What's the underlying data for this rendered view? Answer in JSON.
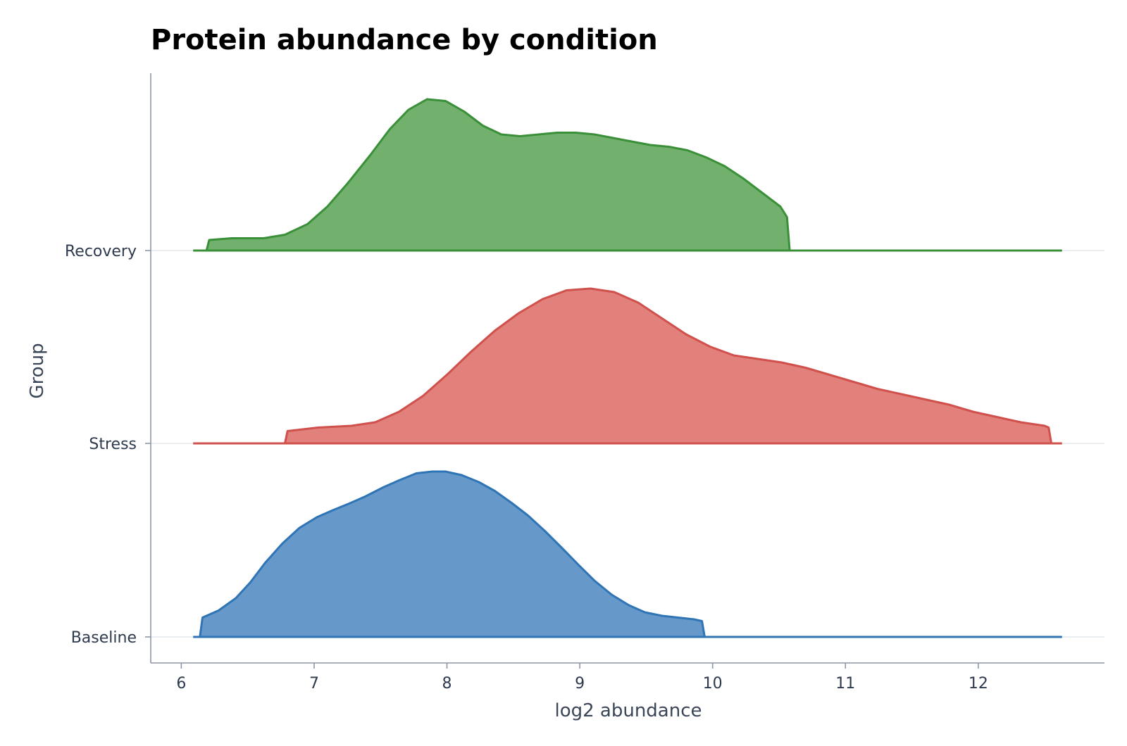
{
  "chart_data": {
    "type": "area",
    "subtype": "ridgeline",
    "title": "Protein abundance by condition",
    "xlabel": "log2 abundance",
    "ylabel": "Group",
    "xlim": [
      5.77,
      12.95
    ],
    "x_ticks": [
      6,
      7,
      8,
      9,
      10,
      11,
      12
    ],
    "x_tick_labels": [
      "6",
      "7",
      "8",
      "9",
      "10",
      "11",
      "12"
    ],
    "grid": "horizontal baselines only",
    "legend": "none",
    "series": [
      {
        "name": "Baseline",
        "color": "#2f74b5",
        "fill": "#6699c9",
        "domain": [
          6.09,
          12.63
        ],
        "points": [
          [
            6.09,
            0
          ],
          [
            6.14,
            0
          ],
          [
            6.16,
            0.11
          ],
          [
            6.28,
            0.15
          ],
          [
            6.41,
            0.22
          ],
          [
            6.52,
            0.31
          ],
          [
            6.63,
            0.42
          ],
          [
            6.76,
            0.53
          ],
          [
            6.89,
            0.62
          ],
          [
            7.02,
            0.68
          ],
          [
            7.14,
            0.72
          ],
          [
            7.27,
            0.76
          ],
          [
            7.39,
            0.8
          ],
          [
            7.52,
            0.85
          ],
          [
            7.64,
            0.89
          ],
          [
            7.77,
            0.93
          ],
          [
            7.89,
            0.94
          ],
          [
            7.99,
            0.94
          ],
          [
            8.11,
            0.92
          ],
          [
            8.24,
            0.88
          ],
          [
            8.36,
            0.83
          ],
          [
            8.49,
            0.76
          ],
          [
            8.61,
            0.69
          ],
          [
            8.74,
            0.6
          ],
          [
            8.86,
            0.51
          ],
          [
            8.99,
            0.41
          ],
          [
            9.11,
            0.32
          ],
          [
            9.24,
            0.24
          ],
          [
            9.37,
            0.18
          ],
          [
            9.49,
            0.14
          ],
          [
            9.62,
            0.12
          ],
          [
            9.74,
            0.11
          ],
          [
            9.86,
            0.1
          ],
          [
            9.92,
            0.09
          ],
          [
            9.94,
            0
          ],
          [
            12.63,
            0
          ]
        ]
      },
      {
        "name": "Stress",
        "color": "#d0504c",
        "fill": "#e2807b",
        "domain": [
          6.09,
          12.63
        ],
        "points": [
          [
            6.09,
            0
          ],
          [
            6.78,
            0
          ],
          [
            6.8,
            0.07
          ],
          [
            7.03,
            0.09
          ],
          [
            7.28,
            0.1
          ],
          [
            7.46,
            0.12
          ],
          [
            7.64,
            0.18
          ],
          [
            7.82,
            0.27
          ],
          [
            8.0,
            0.39
          ],
          [
            8.18,
            0.52
          ],
          [
            8.36,
            0.64
          ],
          [
            8.54,
            0.74
          ],
          [
            8.72,
            0.82
          ],
          [
            8.9,
            0.87
          ],
          [
            9.08,
            0.88
          ],
          [
            9.26,
            0.86
          ],
          [
            9.44,
            0.8
          ],
          [
            9.62,
            0.71
          ],
          [
            9.8,
            0.62
          ],
          [
            9.98,
            0.55
          ],
          [
            10.16,
            0.5
          ],
          [
            10.34,
            0.48
          ],
          [
            10.52,
            0.46
          ],
          [
            10.7,
            0.43
          ],
          [
            10.88,
            0.39
          ],
          [
            11.06,
            0.35
          ],
          [
            11.24,
            0.31
          ],
          [
            11.42,
            0.28
          ],
          [
            11.6,
            0.25
          ],
          [
            11.78,
            0.22
          ],
          [
            11.96,
            0.18
          ],
          [
            12.14,
            0.15
          ],
          [
            12.32,
            0.12
          ],
          [
            12.5,
            0.1
          ],
          [
            12.53,
            0.09
          ],
          [
            12.55,
            0
          ],
          [
            12.63,
            0
          ]
        ]
      },
      {
        "name": "Recovery",
        "color": "#3a9038",
        "fill": "#72b06d",
        "domain": [
          6.09,
          12.63
        ],
        "points": [
          [
            6.09,
            0
          ],
          [
            6.19,
            0
          ],
          [
            6.21,
            0.06
          ],
          [
            6.38,
            0.07
          ],
          [
            6.62,
            0.07
          ],
          [
            6.78,
            0.09
          ],
          [
            6.95,
            0.15
          ],
          [
            7.1,
            0.25
          ],
          [
            7.25,
            0.38
          ],
          [
            7.42,
            0.54
          ],
          [
            7.57,
            0.69
          ],
          [
            7.71,
            0.8
          ],
          [
            7.85,
            0.86
          ],
          [
            7.99,
            0.85
          ],
          [
            8.13,
            0.79
          ],
          [
            8.27,
            0.71
          ],
          [
            8.41,
            0.66
          ],
          [
            8.55,
            0.65
          ],
          [
            8.69,
            0.66
          ],
          [
            8.83,
            0.67
          ],
          [
            8.97,
            0.67
          ],
          [
            9.11,
            0.66
          ],
          [
            9.25,
            0.64
          ],
          [
            9.39,
            0.62
          ],
          [
            9.53,
            0.6
          ],
          [
            9.67,
            0.59
          ],
          [
            9.81,
            0.57
          ],
          [
            9.95,
            0.53
          ],
          [
            10.09,
            0.48
          ],
          [
            10.23,
            0.41
          ],
          [
            10.37,
            0.33
          ],
          [
            10.51,
            0.25
          ],
          [
            10.56,
            0.19
          ],
          [
            10.58,
            0
          ],
          [
            12.63,
            0
          ]
        ]
      }
    ],
    "rows": [
      {
        "label": "Recovery",
        "series_index": 2
      },
      {
        "label": "Stress",
        "series_index": 1
      },
      {
        "label": "Baseline",
        "series_index": 0
      }
    ]
  },
  "colors": {
    "axis": "#8c97a6",
    "gridline": "#dfe3e8",
    "tick_text": "#2e3a4e"
  }
}
